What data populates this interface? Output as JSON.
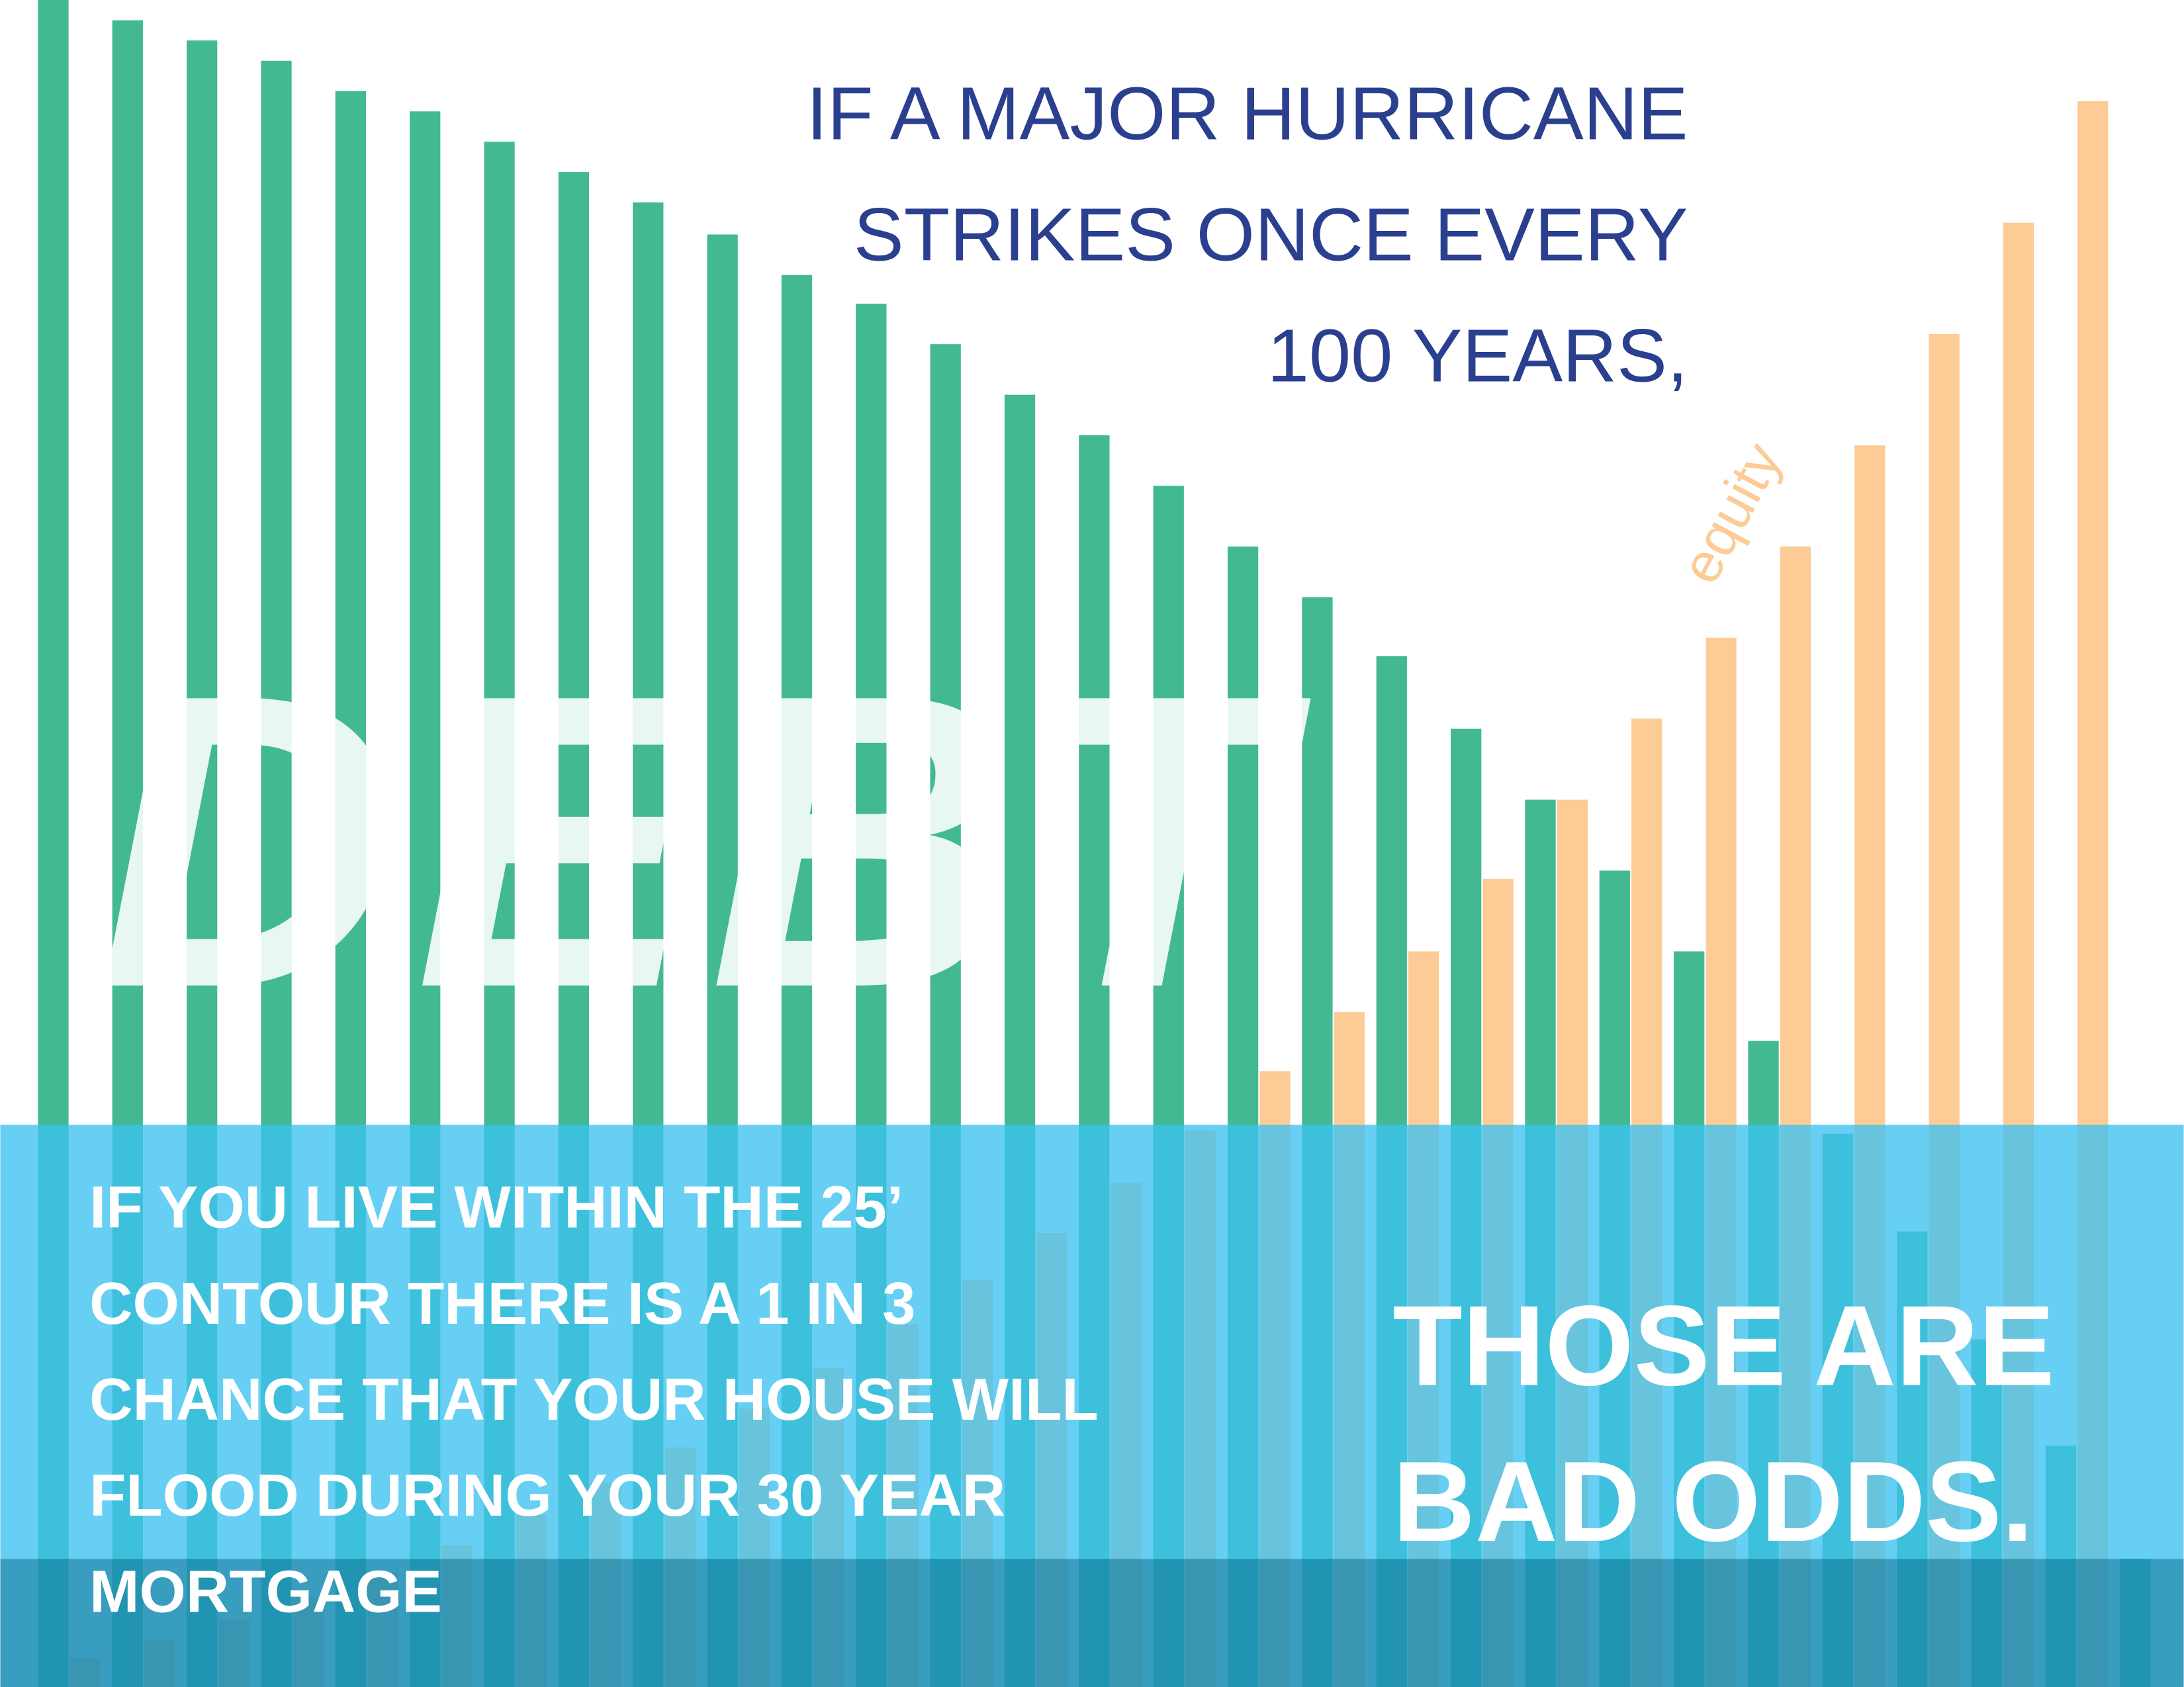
{
  "chart_data": {
    "type": "bar",
    "headline": [
      "IF A MAJOR HURRICANE",
      "STRIKES ONCE EVERY",
      "100 YEARS,"
    ],
    "note": [
      "IF YOU LIVE WITHIN THE 25’",
      "CONTOUR THERE IS A 1 IN 3",
      "CHANCE THAT YOUR HOUSE WILL",
      "FLOOD DURING YOUR 30 YEAR",
      "MORTGAGE"
    ],
    "conclusion": [
      "THOSE ARE",
      "BAD ODDS."
    ],
    "ylim": [
      0,
      100
    ],
    "series": [
      {
        "name": "DEBT",
        "color": "#43b992",
        "values": [
          100,
          98.8,
          97.6,
          96.4,
          94.6,
          93.4,
          91.6,
          89.8,
          88.0,
          86.1,
          83.7,
          82.0,
          79.6,
          76.6,
          74.2,
          71.2,
          67.6,
          64.6,
          61.1,
          56.8,
          52.6,
          48.4,
          43.6,
          38.3,
          32.8,
          27.0,
          20.6,
          14.3,
          7.6
        ]
      },
      {
        "name": "equity",
        "color": "#fccb96",
        "values": [
          1.7,
          2.8,
          4.0,
          5.3,
          6.8,
          8.4,
          10.2,
          12.1,
          14.2,
          16.5,
          18.9,
          21.5,
          24.1,
          26.9,
          29.9,
          33.0,
          36.5,
          40.0,
          43.6,
          47.9,
          52.6,
          57.4,
          62.2,
          67.6,
          73.6,
          80.2,
          86.8,
          94.0,
          null
        ]
      }
    ]
  }
}
